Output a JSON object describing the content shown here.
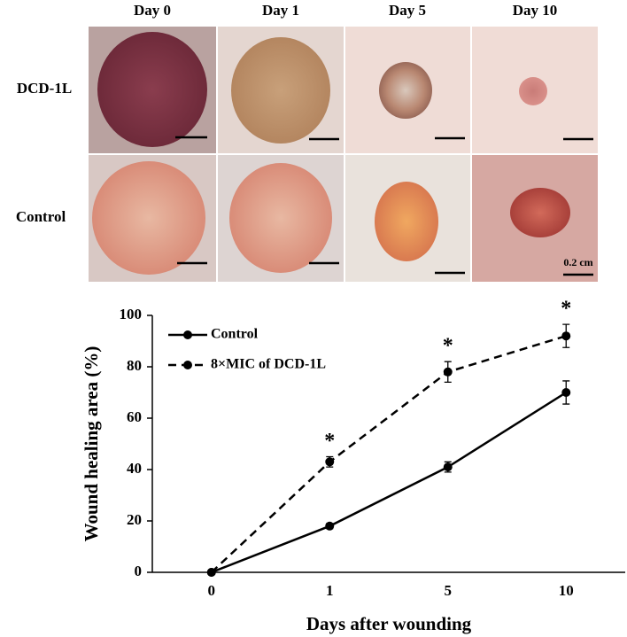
{
  "photo_panel": {
    "columns": [
      "Day 0",
      "Day 1",
      "Day 5",
      "Day 10"
    ],
    "rows": [
      "DCD-1L",
      "Control"
    ],
    "scale_label": "0.2 cm"
  },
  "chart_data": {
    "type": "line",
    "x_label": "Days after wounding",
    "y_label": "Wound healing area (%)",
    "categories": [
      "0",
      "1",
      "5",
      "10"
    ],
    "series": [
      {
        "name": "Control",
        "color": "#000000",
        "dash": false,
        "values": [
          0,
          18,
          41,
          70
        ],
        "errors": [
          0,
          1,
          2,
          4.5
        ]
      },
      {
        "name": "8×MIC of DCD-1L",
        "color": "#000000",
        "dash": true,
        "values": [
          0,
          43,
          78,
          92
        ],
        "errors": [
          0,
          2,
          4,
          4.5
        ]
      }
    ],
    "annotations": [
      {
        "text": "*",
        "x": "1"
      },
      {
        "text": "*",
        "x": "5"
      },
      {
        "text": "*",
        "x": "10"
      }
    ],
    "ylim": [
      0,
      100
    ],
    "yticks": [
      0,
      20,
      40,
      60,
      80,
      100
    ],
    "grid": false,
    "legend": "top-left"
  }
}
